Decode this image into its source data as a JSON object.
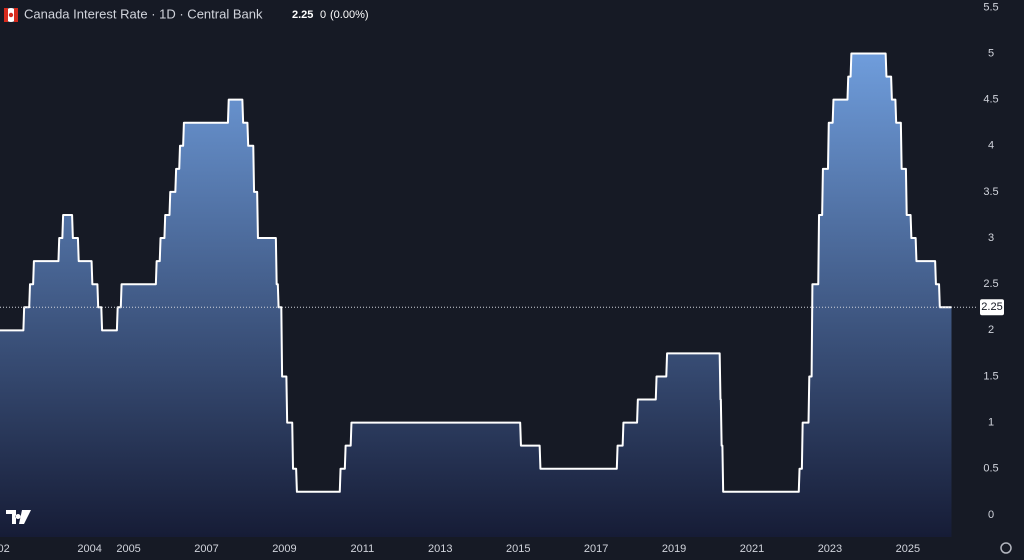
{
  "chart_data": {
    "type": "line",
    "title": "Canada Interest Rate · 1D · Central Bank",
    "last_value": 2.25,
    "change": 0,
    "change_percent_label": "(0.00%)",
    "color": "#ffffff",
    "fill_top": "#6f9ddc",
    "fill_bottom": "#161c36",
    "x": [
      2001.7,
      2002.3,
      2002.32,
      2002.45,
      2002.47,
      2002.55,
      2002.57,
      2003.2,
      2003.22,
      2003.3,
      2003.32,
      2003.55,
      2003.57,
      2003.7,
      2003.72,
      2004.05,
      2004.07,
      2004.2,
      2004.22,
      2004.3,
      2004.32,
      2004.7,
      2004.72,
      2004.8,
      2004.82,
      2005.7,
      2005.72,
      2005.8,
      2005.82,
      2005.92,
      2005.94,
      2006.05,
      2006.07,
      2006.2,
      2006.22,
      2006.3,
      2006.32,
      2006.4,
      2006.42,
      2007.55,
      2007.57,
      2007.92,
      2007.94,
      2008.05,
      2008.07,
      2008.2,
      2008.22,
      2008.3,
      2008.32,
      2008.78,
      2008.8,
      2008.83,
      2008.85,
      2008.92,
      2008.94,
      2009.05,
      2009.07,
      2009.2,
      2009.22,
      2009.3,
      2009.32,
      2010.42,
      2010.44,
      2010.55,
      2010.57,
      2010.7,
      2010.72,
      2015.05,
      2015.07,
      2015.55,
      2015.57,
      2017.53,
      2017.55,
      2017.68,
      2017.7,
      2018.05,
      2018.07,
      2018.53,
      2018.55,
      2018.8,
      2018.82,
      2020.17,
      2020.19,
      2020.2,
      2020.22,
      2020.24,
      2020.26,
      2022.2,
      2022.22,
      2022.28,
      2022.3,
      2022.45,
      2022.47,
      2022.53,
      2022.55,
      2022.7,
      2022.72,
      2022.8,
      2022.82,
      2022.95,
      2022.97,
      2023.07,
      2023.09,
      2023.45,
      2023.47,
      2023.53,
      2023.55,
      2024.43,
      2024.45,
      2024.57,
      2024.59,
      2024.68,
      2024.7,
      2024.82,
      2024.84,
      2024.95,
      2024.97,
      2025.07,
      2025.09,
      2025.2,
      2025.22,
      2025.7,
      2025.72,
      2025.8,
      2025.82,
      2026.12
    ],
    "values": [
      2,
      2,
      2.25,
      2.25,
      2.5,
      2.5,
      2.75,
      2.75,
      3,
      3,
      3.25,
      3.25,
      3,
      3,
      2.75,
      2.75,
      2.5,
      2.5,
      2.25,
      2.25,
      2,
      2,
      2.25,
      2.25,
      2.5,
      2.5,
      2.75,
      2.75,
      3,
      3,
      3.25,
      3.25,
      3.5,
      3.5,
      3.75,
      3.75,
      4,
      4,
      4.25,
      4.25,
      4.5,
      4.5,
      4.25,
      4.25,
      4,
      4,
      3.5,
      3.5,
      3,
      3,
      2.5,
      2.5,
      2.25,
      2.25,
      1.5,
      1.5,
      1,
      1,
      0.5,
      0.5,
      0.25,
      0.25,
      0.5,
      0.5,
      0.75,
      0.75,
      1,
      1,
      0.75,
      0.75,
      0.5,
      0.5,
      0.75,
      0.75,
      1,
      1,
      1.25,
      1.25,
      1.5,
      1.5,
      1.75,
      1.75,
      1.25,
      1.25,
      0.75,
      0.75,
      0.25,
      0.25,
      0.5,
      0.5,
      1,
      1,
      1.5,
      1.5,
      2.5,
      2.5,
      3.25,
      3.25,
      3.75,
      3.75,
      4.25,
      4.25,
      4.5,
      4.5,
      4.75,
      4.75,
      5,
      5,
      4.75,
      4.75,
      4.5,
      4.5,
      4.25,
      4.25,
      3.75,
      3.75,
      3.25,
      3.25,
      3,
      3,
      2.75,
      2.75,
      2.5,
      2.5,
      2.25,
      2.25
    ],
    "xlim": [
      2001.7,
      2026.8
    ],
    "xticks": [
      {
        "value": 2002,
        "label": "02"
      },
      2004,
      2005,
      2007,
      2009,
      2011,
      2013,
      2015,
      2017,
      2019,
      2021,
      2023,
      2025
    ],
    "ylim": [
      -0.24,
      5.58
    ],
    "yticks": [
      0,
      0.5,
      1,
      1.5,
      2,
      2.5,
      3,
      3.5,
      4,
      4.5,
      5,
      5.5
    ]
  }
}
